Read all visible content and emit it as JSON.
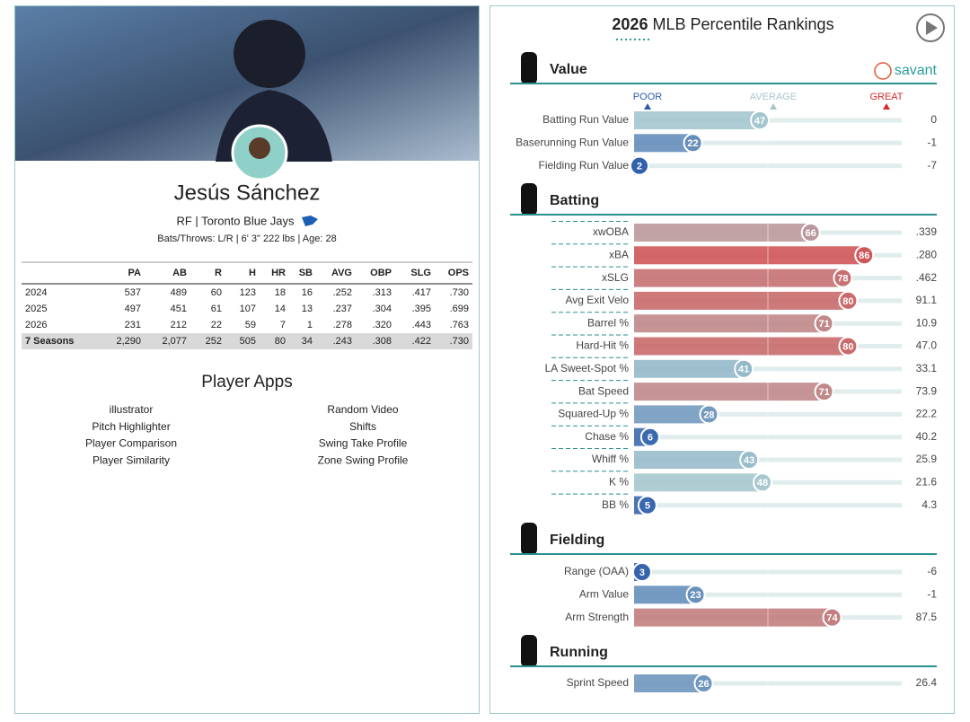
{
  "player": {
    "name": "Jesús Sánchez",
    "subtitle": "RF | Toronto Blue Jays",
    "bio": "Bats/Throws: L/R | 6' 3\" 222 lbs | Age: 28"
  },
  "stats_table": {
    "columns": [
      "PA",
      "AB",
      "R",
      "H",
      "HR",
      "SB",
      "AVG",
      "OBP",
      "SLG",
      "OPS"
    ],
    "rows": [
      {
        "label": "2024",
        "values": [
          "537",
          "489",
          "60",
          "123",
          "18",
          "16",
          ".252",
          ".313",
          ".417",
          ".730"
        ]
      },
      {
        "label": "2025",
        "values": [
          "497",
          "451",
          "61",
          "107",
          "14",
          "13",
          ".237",
          ".304",
          ".395",
          ".699"
        ]
      },
      {
        "label": "2026",
        "values": [
          "231",
          "212",
          "22",
          "59",
          "7",
          "1",
          ".278",
          ".320",
          ".443",
          ".763"
        ]
      },
      {
        "label": "7 Seasons",
        "values": [
          "2,290",
          "2,077",
          "252",
          "505",
          "80",
          "34",
          ".243",
          ".308",
          ".422",
          ".730"
        ]
      }
    ]
  },
  "apps": {
    "title": "Player Apps",
    "left": [
      "illustrator",
      "Pitch Highlighter",
      "Player Comparison",
      "Player Similarity"
    ],
    "right": [
      "Random Video",
      "Shifts",
      "Swing Take Profile",
      "Zone Swing Profile"
    ]
  },
  "rankings": {
    "year": "2026",
    "title": "MLB Percentile Rankings",
    "brand": "savant",
    "scale": {
      "poor": "POOR",
      "average": "AVERAGE",
      "great": "GREAT"
    },
    "sections": [
      {
        "name": "Value",
        "rows": [
          {
            "label": "Batting Run Value",
            "percentile": 47,
            "value": "0"
          },
          {
            "label": "Baserunning Run Value",
            "percentile": 22,
            "value": "-1"
          },
          {
            "label": "Fielding Run Value",
            "percentile": 2,
            "value": "-7"
          }
        ]
      },
      {
        "name": "Batting",
        "rows": [
          {
            "label": "xwOBA",
            "percentile": 66,
            "value": ".339"
          },
          {
            "label": "xBA",
            "percentile": 86,
            "value": ".280"
          },
          {
            "label": "xSLG",
            "percentile": 78,
            "value": ".462"
          },
          {
            "label": "Avg Exit Velo",
            "percentile": 80,
            "value": "91.1"
          },
          {
            "label": "Barrel %",
            "percentile": 71,
            "value": "10.9"
          },
          {
            "label": "Hard-Hit %",
            "percentile": 80,
            "value": "47.0"
          },
          {
            "label": "LA Sweet-Spot %",
            "percentile": 41,
            "value": "33.1"
          },
          {
            "label": "Bat Speed",
            "percentile": 71,
            "value": "73.9"
          },
          {
            "label": "Squared-Up %",
            "percentile": 28,
            "value": "22.2"
          },
          {
            "label": "Chase %",
            "percentile": 6,
            "value": "40.2"
          },
          {
            "label": "Whiff %",
            "percentile": 43,
            "value": "25.9"
          },
          {
            "label": "K %",
            "percentile": 48,
            "value": "21.6"
          },
          {
            "label": "BB %",
            "percentile": 5,
            "value": "4.3"
          }
        ]
      },
      {
        "name": "Fielding",
        "rows": [
          {
            "label": "Range (OAA)",
            "percentile": 3,
            "value": "-6"
          },
          {
            "label": "Arm Value",
            "percentile": 23,
            "value": "-1"
          },
          {
            "label": "Arm Strength",
            "percentile": 74,
            "value": "87.5"
          }
        ]
      },
      {
        "name": "Running",
        "rows": [
          {
            "label": "Sprint Speed",
            "percentile": 26,
            "value": "26.4"
          }
        ]
      }
    ]
  }
}
